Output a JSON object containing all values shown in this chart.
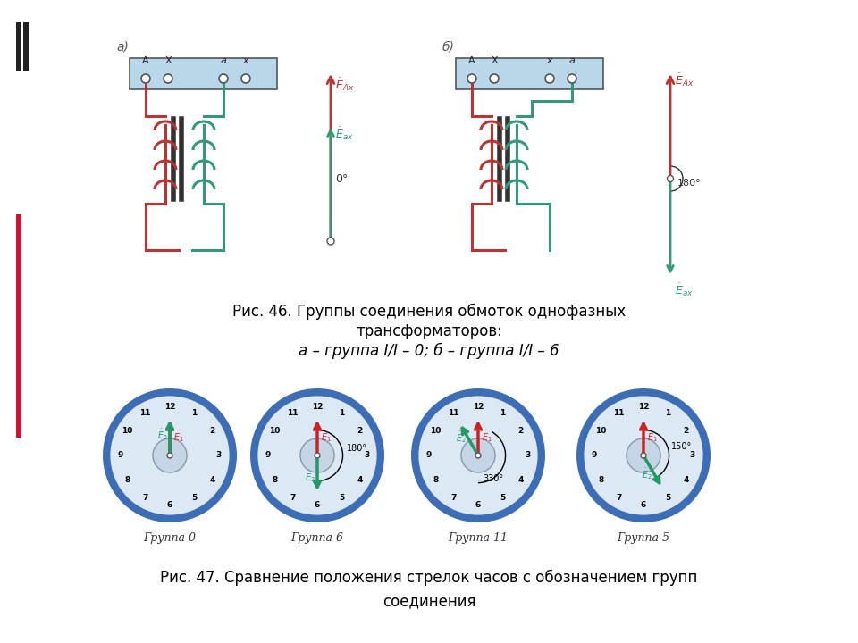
{
  "bg_color": "#ffffff",
  "caption1_line1": "Рис. 46. Группы соединения обмоток однофазных",
  "caption1_line2": "трансформаторов:",
  "caption1_line3": "а – группа I/I – 0; б – группа I/I – 6",
  "caption2_line1": "Рис. 47. Сравнение положения стрелок часов с обозначением групп",
  "caption2_line2": "соединения",
  "clock_labels": [
    "Группа 0",
    "Группа 6",
    "Группа 11",
    "Группа 5"
  ]
}
